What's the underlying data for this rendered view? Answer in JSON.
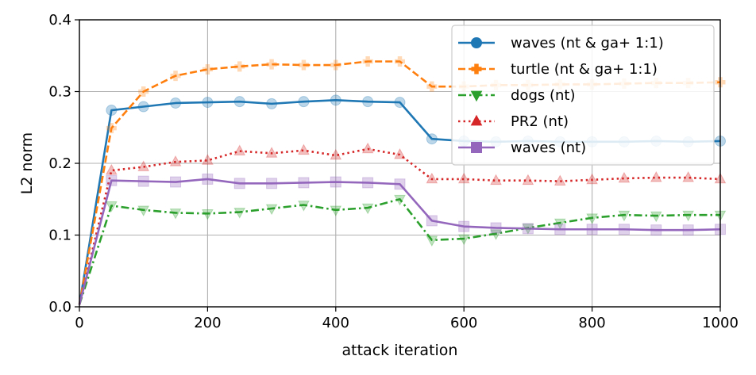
{
  "chart_data": {
    "type": "line",
    "title": "",
    "xlabel": "attack iteration",
    "ylabel": "L2 norm",
    "xlim": [
      0,
      1000
    ],
    "ylim": [
      0,
      0.4
    ],
    "xticks": [
      0,
      200,
      400,
      600,
      800,
      1000
    ],
    "yticks": [
      0.0,
      0.1,
      0.2,
      0.3,
      0.4
    ],
    "xtick_labels": [
      "0",
      "200",
      "400",
      "600",
      "800",
      "1000"
    ],
    "ytick_labels": [
      "0.0",
      "0.1",
      "0.2",
      "0.3",
      "0.4"
    ],
    "grid": true,
    "legend_position": "top-right",
    "x": [
      0,
      50,
      100,
      150,
      200,
      250,
      300,
      350,
      400,
      450,
      500,
      550,
      600,
      650,
      700,
      750,
      800,
      850,
      900,
      950,
      1000
    ],
    "series": [
      {
        "name": "waves (nt & ga+ 1:1)",
        "color": "#1f77b4",
        "marker": "circle",
        "dash": "solid",
        "values": [
          0.003,
          0.274,
          0.279,
          0.284,
          0.285,
          0.286,
          0.283,
          0.286,
          0.288,
          0.286,
          0.285,
          0.234,
          0.231,
          0.23,
          0.231,
          0.23,
          0.23,
          0.23,
          0.231,
          0.23,
          0.231
        ]
      },
      {
        "name": "turtle (nt & ga+ 1:1)",
        "color": "#ff7f0e",
        "marker": "plus",
        "dash": "dashed",
        "values": [
          0.003,
          0.249,
          0.3,
          0.322,
          0.331,
          0.335,
          0.338,
          0.337,
          0.337,
          0.342,
          0.342,
          0.307,
          0.307,
          0.309,
          0.309,
          0.31,
          0.31,
          0.311,
          0.312,
          0.312,
          0.313
        ]
      },
      {
        "name": "dogs (nt)",
        "color": "#2ca02c",
        "marker": "triangle-down",
        "dash": "dashdot",
        "values": [
          0.003,
          0.141,
          0.135,
          0.131,
          0.13,
          0.132,
          0.137,
          0.142,
          0.135,
          0.138,
          0.15,
          0.093,
          0.095,
          0.102,
          0.11,
          0.117,
          0.124,
          0.128,
          0.127,
          0.128,
          0.128
        ]
      },
      {
        "name": "PR2 (nt)",
        "color": "#d62728",
        "marker": "triangle-up",
        "dash": "dotted",
        "values": [
          0.003,
          0.19,
          0.195,
          0.202,
          0.204,
          0.217,
          0.214,
          0.218,
          0.211,
          0.22,
          0.212,
          0.178,
          0.178,
          0.176,
          0.176,
          0.175,
          0.177,
          0.179,
          0.18,
          0.18,
          0.178
        ]
      },
      {
        "name": "waves (nt)",
        "color": "#9467bd",
        "marker": "square",
        "dash": "solid",
        "values": [
          0.003,
          0.176,
          0.175,
          0.174,
          0.178,
          0.172,
          0.172,
          0.173,
          0.174,
          0.173,
          0.171,
          0.12,
          0.112,
          0.11,
          0.109,
          0.108,
          0.108,
          0.108,
          0.107,
          0.107,
          0.108
        ]
      }
    ]
  }
}
